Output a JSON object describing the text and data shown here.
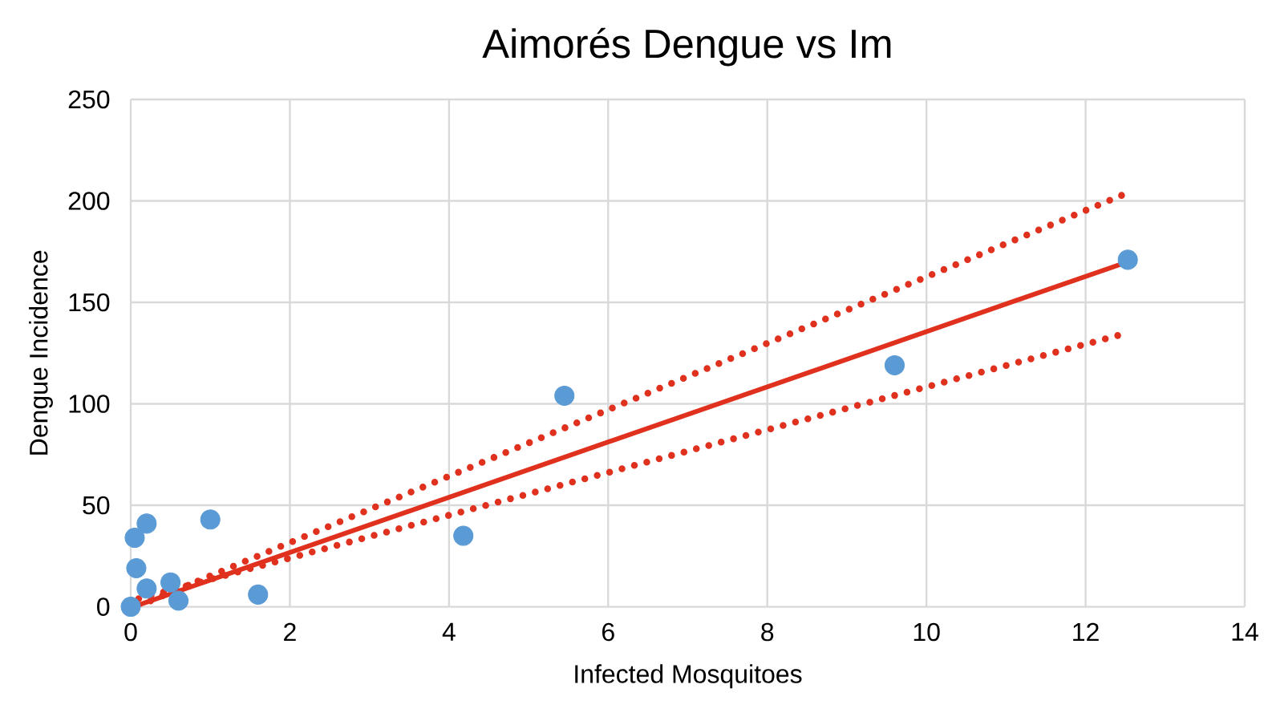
{
  "chart_data": {
    "type": "scatter",
    "title": "Aimorés Dengue vs Im",
    "xlabel": "Infected Mosquitoes",
    "ylabel": "Dengue Incidence",
    "xlim": [
      0,
      14
    ],
    "xticks": [
      0,
      2,
      4,
      6,
      8,
      10,
      12,
      14
    ],
    "ylim": [
      0,
      250
    ],
    "yticks": [
      0,
      50,
      100,
      150,
      200,
      250
    ],
    "grid": true,
    "series": [
      {
        "color": "#5b9bd5",
        "marker": "circle",
        "x": [
          0,
          0.05,
          0.2,
          0.07,
          0.2,
          0.5,
          0.6,
          1.0,
          1.6,
          4.18,
          5.45,
          9.6,
          12.53
        ],
        "values": [
          0,
          34,
          41,
          19,
          9,
          12,
          3,
          43,
          6,
          35,
          104,
          119,
          171
        ]
      },
      {
        "type": "line",
        "color": "#e0301e",
        "line_style": "solid",
        "marker": "none",
        "x": [
          0.1,
          12.53
        ],
        "values": [
          0.9,
          170
        ]
      },
      {
        "type": "line",
        "color": "#e0301e",
        "line_style": "dotted",
        "marker": "none",
        "x": [
          0.1,
          12.53
        ],
        "values": [
          0.5,
          204
        ]
      },
      {
        "type": "line",
        "color": "#e0301e",
        "line_style": "dotted",
        "marker": "none",
        "x": [
          0.1,
          12.53
        ],
        "values": [
          4,
          135
        ]
      }
    ]
  }
}
